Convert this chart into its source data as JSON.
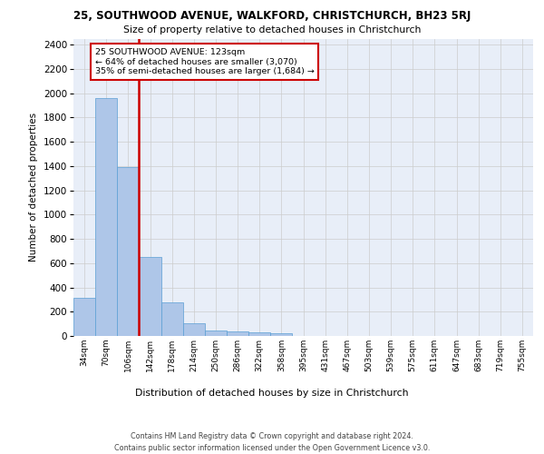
{
  "title_line1": "25, SOUTHWOOD AVENUE, WALKFORD, CHRISTCHURCH, BH23 5RJ",
  "title_line2": "Size of property relative to detached houses in Christchurch",
  "xlabel": "Distribution of detached houses by size in Christchurch",
  "ylabel": "Number of detached properties",
  "footer_line1": "Contains HM Land Registry data © Crown copyright and database right 2024.",
  "footer_line2": "Contains public sector information licensed under the Open Government Licence v3.0.",
  "bar_labels": [
    "34sqm",
    "70sqm",
    "106sqm",
    "142sqm",
    "178sqm",
    "214sqm",
    "250sqm",
    "286sqm",
    "322sqm",
    "358sqm",
    "395sqm",
    "431sqm",
    "467sqm",
    "503sqm",
    "539sqm",
    "575sqm",
    "611sqm",
    "647sqm",
    "683sqm",
    "719sqm",
    "755sqm"
  ],
  "bar_values": [
    315,
    1960,
    1390,
    648,
    280,
    105,
    48,
    40,
    30,
    20,
    0,
    0,
    0,
    0,
    0,
    0,
    0,
    0,
    0,
    0,
    0
  ],
  "bar_color": "#aec6e8",
  "bar_edge_color": "#5a9fd4",
  "grid_color": "#cccccc",
  "background_color": "#e8eef8",
  "vline_color": "#cc0000",
  "vline_pos": 2.47,
  "annotation_line1": "25 SOUTHWOOD AVENUE: 123sqm",
  "annotation_line2": "← 64% of detached houses are smaller (3,070)",
  "annotation_line3": "35% of semi-detached houses are larger (1,684) →",
  "annotation_box_color": "#cc0000",
  "ylim_max": 2450,
  "yticks": [
    0,
    200,
    400,
    600,
    800,
    1000,
    1200,
    1400,
    1600,
    1800,
    2000,
    2200,
    2400
  ]
}
